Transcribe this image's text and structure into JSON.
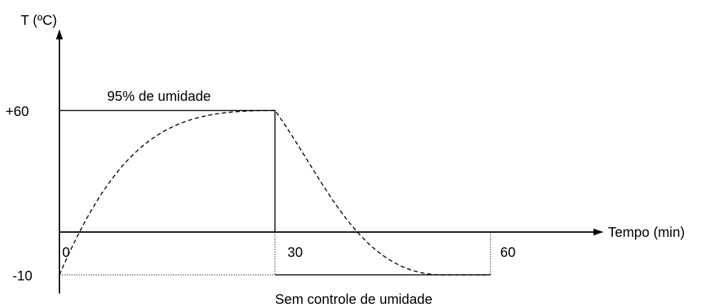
{
  "axes": {
    "y_label": "T (ºC)",
    "x_label": "Tempo (min)"
  },
  "y_ticks": [
    "+60",
    "-10"
  ],
  "x_ticks": [
    "0",
    "30",
    "60"
  ],
  "annotations": {
    "top": "95% de umidade",
    "bottom": "Sem controle de umidade"
  }
}
